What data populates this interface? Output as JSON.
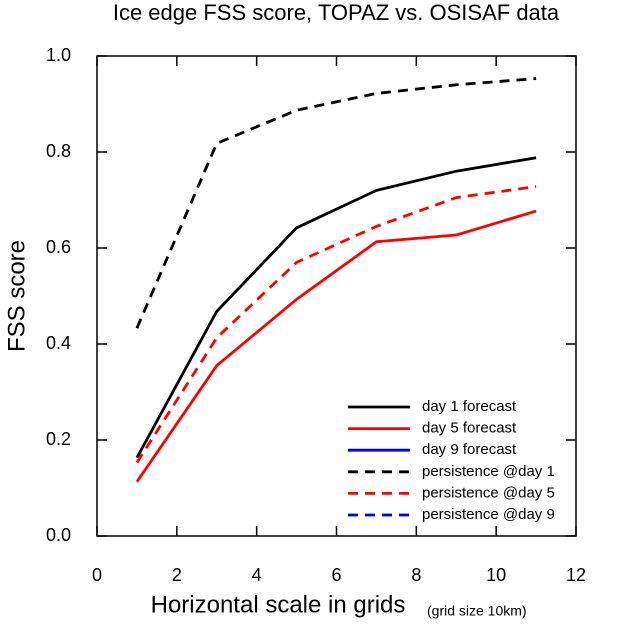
{
  "chart_data": {
    "type": "line",
    "title": "Ice edge FSS score, TOPAZ vs. OSISAF data",
    "x_label": "Horizontal scale in grids",
    "x_label_note": "(grid size 10km)",
    "y_label": "FSS score",
    "x": [
      1,
      3,
      5,
      7,
      9,
      11
    ],
    "series": [
      {
        "name": "day 1 forecast",
        "color": "#000000",
        "linestyle": "solid",
        "values": [
          0.163,
          0.468,
          0.642,
          0.72,
          0.76,
          0.788
        ]
      },
      {
        "name": "day 5 forecast",
        "color": "#ff0000",
        "linestyle": "solid",
        "values": [
          0.113,
          0.355,
          0.493,
          0.613,
          0.627,
          0.677
        ]
      },
      {
        "name": "day 9 forecast",
        "color": "#0000ff",
        "linestyle": "solid",
        "values": [
          null,
          null,
          null,
          null,
          null,
          null
        ]
      },
      {
        "name": "persistence @day 1",
        "color": "#000000",
        "linestyle": "dashed",
        "values": [
          0.433,
          0.818,
          0.887,
          0.922,
          0.94,
          0.953
        ]
      },
      {
        "name": "persistence @day 5",
        "color": "#ff0000",
        "linestyle": "dashed",
        "values": [
          0.153,
          0.413,
          0.57,
          0.645,
          0.705,
          0.728
        ]
      },
      {
        "name": "persistence @day 9",
        "color": "#0000ff",
        "linestyle": "dashed",
        "values": [
          null,
          null,
          null,
          null,
          null,
          null
        ]
      }
    ],
    "xlim": [
      0,
      12
    ],
    "xticks": [
      0,
      2,
      4,
      6,
      8,
      10,
      12
    ],
    "ylim": [
      0,
      1
    ],
    "yticks": [
      {
        "value": 0,
        "label": "0.0"
      },
      0.2,
      0.4,
      0.6,
      0.8,
      {
        "value": 1,
        "label": "1.0"
      }
    ],
    "legend": "lower right"
  }
}
